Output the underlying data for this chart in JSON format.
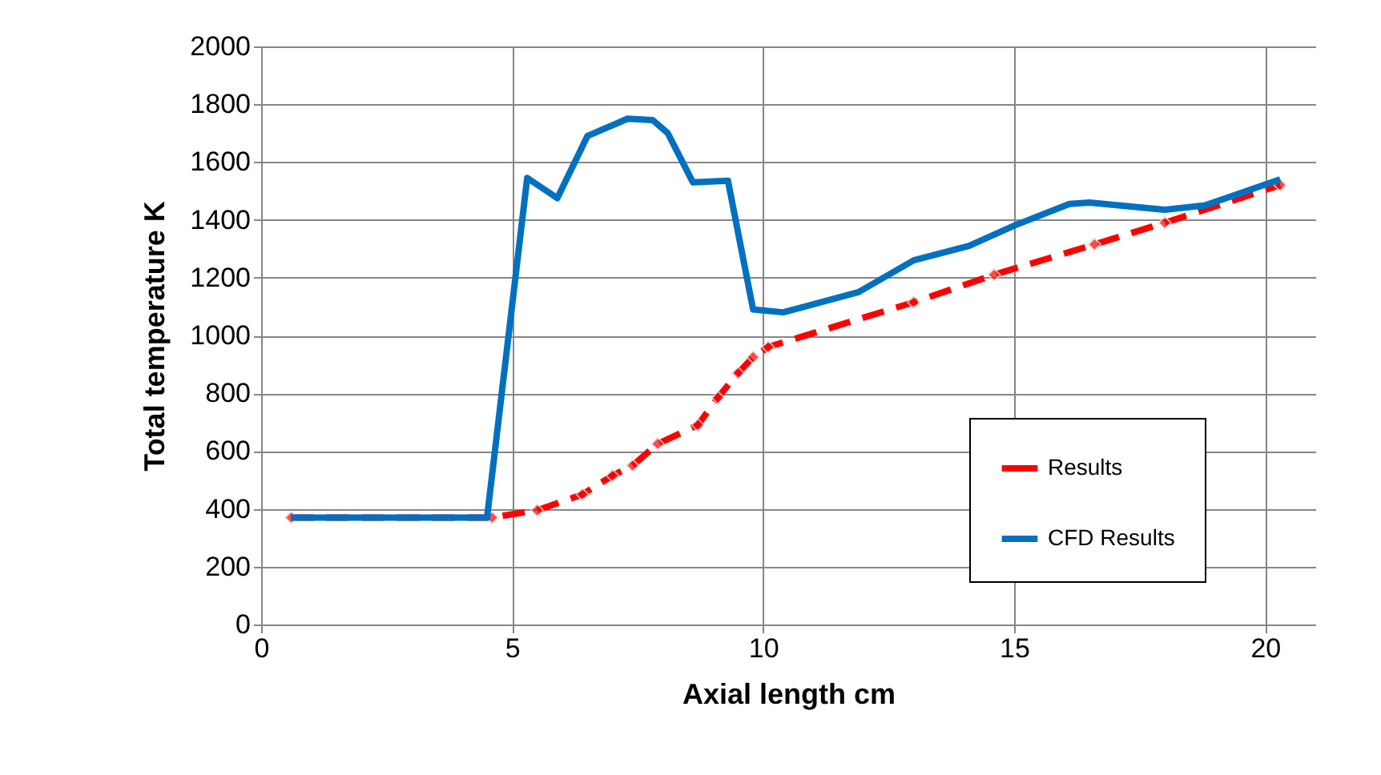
{
  "chart_data": {
    "type": "line",
    "xlabel": "Axial length cm",
    "ylabel": "Total temperature K",
    "xlim": [
      0,
      21
    ],
    "xticks": [
      0,
      5,
      10,
      15,
      20
    ],
    "ylim": [
      0,
      2000
    ],
    "yticks": [
      0,
      200,
      400,
      600,
      800,
      1000,
      1200,
      1400,
      1600,
      1800,
      2000
    ],
    "grid": true,
    "legend": "right",
    "series": [
      {
        "name": "Results",
        "color": "#ff0000",
        "line_style": "dashed",
        "marker": "diamond",
        "x": [
          0.6,
          4.6,
          5.5,
          6.4,
          7.0,
          7.4,
          7.9,
          8.7,
          9.1,
          9.5,
          9.8,
          10.1,
          13.0,
          14.6,
          16.6,
          18.0,
          20.3
        ],
        "values": [
          370,
          370,
          395,
          450,
          515,
          550,
          625,
          690,
          785,
          870,
          925,
          960,
          1115,
          1210,
          1315,
          1390,
          1520
        ]
      },
      {
        "name": "CFD Results",
        "color": "#0070c0",
        "line_style": "solid",
        "marker": "none",
        "x": [
          0.6,
          4.5,
          5.3,
          5.9,
          6.5,
          7.3,
          7.8,
          8.1,
          8.6,
          9.3,
          9.8,
          10.4,
          11.9,
          13.0,
          14.1,
          15.0,
          16.1,
          16.5,
          18.0,
          18.8,
          20.3
        ],
        "values": [
          370,
          370,
          1545,
          1475,
          1690,
          1750,
          1745,
          1700,
          1530,
          1535,
          1090,
          1080,
          1150,
          1260,
          1310,
          1380,
          1455,
          1460,
          1435,
          1450,
          1540
        ]
      }
    ]
  }
}
